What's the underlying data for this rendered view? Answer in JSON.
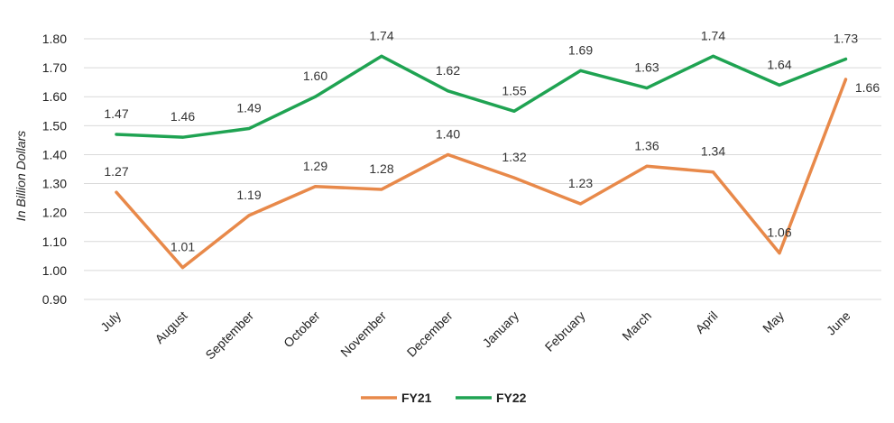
{
  "chart_data": {
    "type": "line",
    "categories": [
      "July",
      "August",
      "September",
      "October",
      "November",
      "December",
      "January",
      "February",
      "March",
      "April",
      "May",
      "June"
    ],
    "series": [
      {
        "name": "FY21",
        "color": "#E8894A",
        "values": [
          1.27,
          1.01,
          1.19,
          1.29,
          1.28,
          1.4,
          1.32,
          1.23,
          1.36,
          1.34,
          1.06,
          1.66
        ]
      },
      {
        "name": "FY22",
        "color": "#1FA352",
        "values": [
          1.47,
          1.46,
          1.49,
          1.6,
          1.74,
          1.62,
          1.55,
          1.69,
          1.63,
          1.74,
          1.64,
          1.73
        ]
      }
    ],
    "ylabel": "In Billion Dollars",
    "ylim": [
      0.9,
      1.8
    ],
    "yticks": [
      "0.90",
      "1.00",
      "1.10",
      "1.20",
      "1.30",
      "1.40",
      "1.50",
      "1.60",
      "1.70",
      "1.80"
    ],
    "grid": true,
    "legend": "bottom"
  }
}
